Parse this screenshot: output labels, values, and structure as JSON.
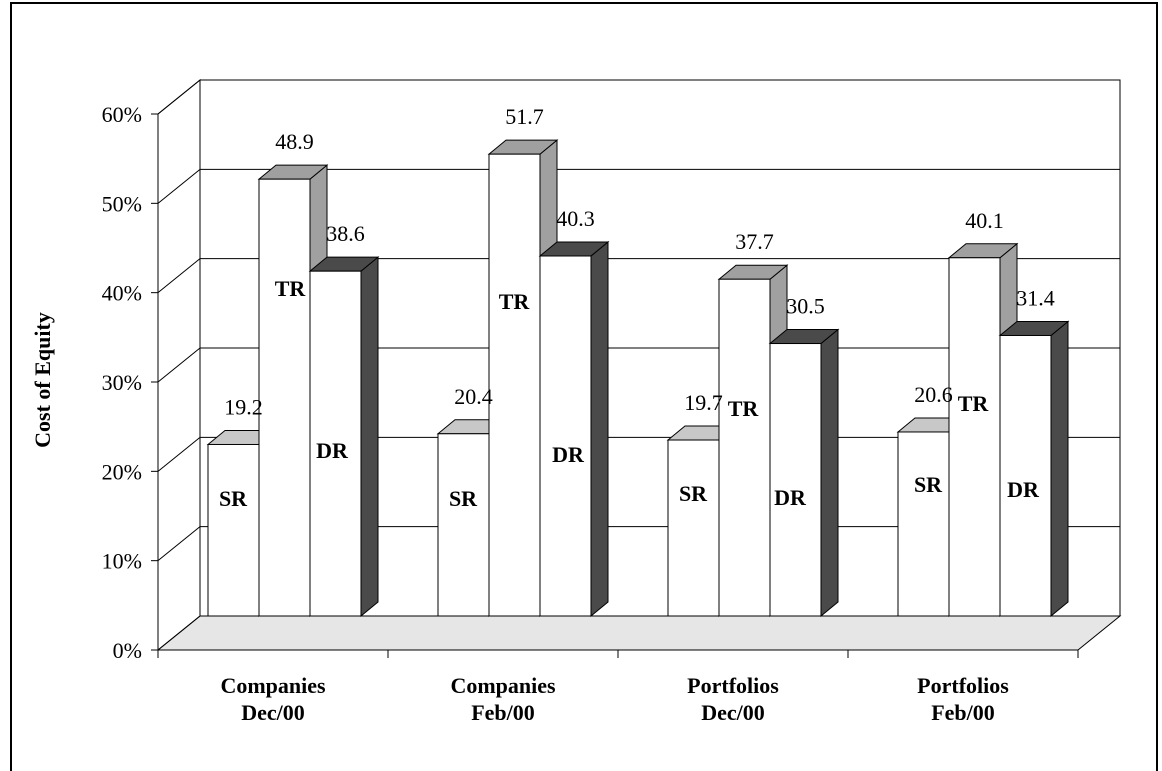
{
  "chart_data": {
    "type": "bar",
    "title": "",
    "ylabel": "Cost of Equity",
    "xlabel": "",
    "ylim": [
      0,
      60
    ],
    "y_ticks": [
      "0%",
      "10%",
      "20%",
      "30%",
      "40%",
      "50%",
      "60%"
    ],
    "grid": true,
    "categories": [
      [
        "Companies",
        "Dec/00"
      ],
      [
        "Companies",
        "Feb/00"
      ],
      [
        "Portfolios",
        "Dec/00"
      ],
      [
        "Portfolios",
        "Feb/00"
      ]
    ],
    "series": [
      {
        "name": "SR",
        "values": [
          19.2,
          20.4,
          19.7,
          20.6
        ],
        "side_color": "#c8c8c8"
      },
      {
        "name": "TR",
        "values": [
          48.9,
          51.7,
          37.7,
          40.1
        ],
        "side_color": "#a0a0a0"
      },
      {
        "name": "DR",
        "values": [
          38.6,
          40.3,
          30.5,
          31.4
        ],
        "side_color": "#4a4a4a"
      }
    ],
    "data_labels": [
      [
        "19.2",
        "48.9",
        "38.6"
      ],
      [
        "20.4",
        "51.7",
        "40.3"
      ],
      [
        "19.7",
        "37.7",
        "30.5"
      ],
      [
        "20.6",
        "40.1",
        "31.4"
      ]
    ]
  }
}
